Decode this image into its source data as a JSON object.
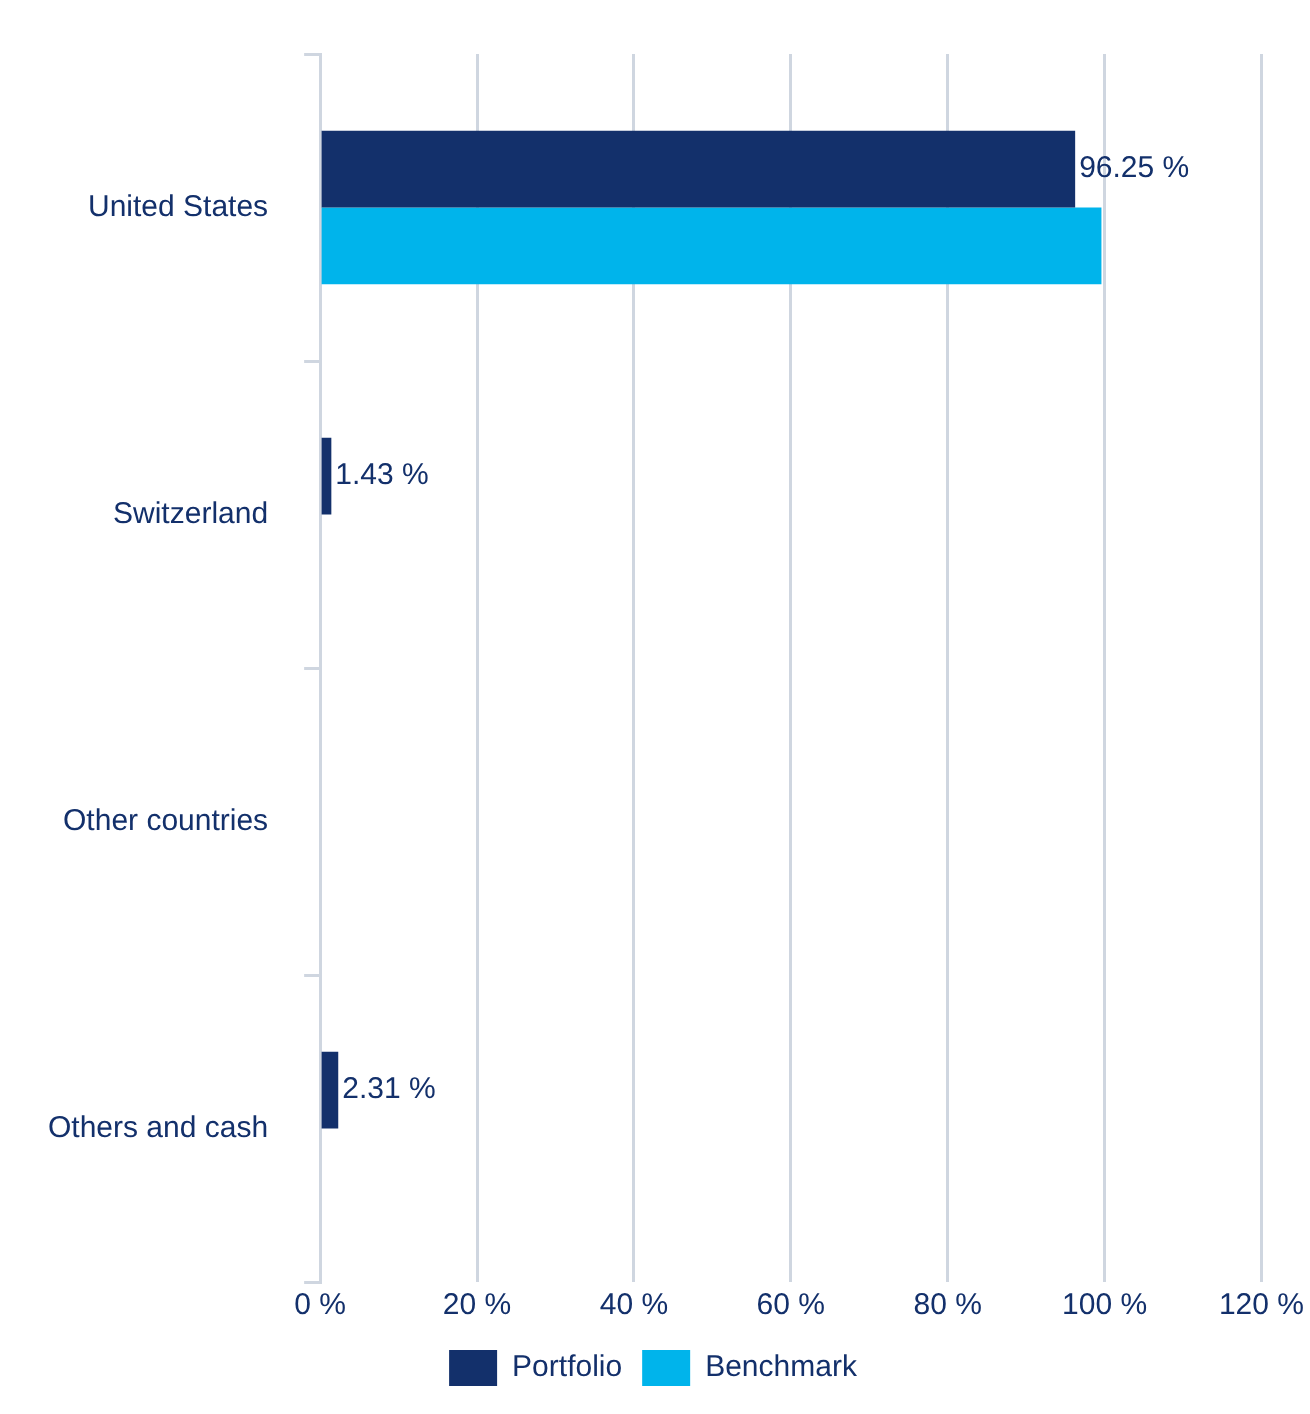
{
  "chart_data": {
    "type": "bar",
    "orientation": "horizontal",
    "categories": [
      "United States",
      "Switzerland",
      "Other countries",
      "Others and cash"
    ],
    "series": [
      {
        "name": "Portfolio",
        "color": "#13306b",
        "values": [
          96.25,
          1.43,
          0,
          2.31
        ],
        "value_labels": [
          "96.25 %",
          "1.43 %",
          null,
          "2.31 %"
        ]
      },
      {
        "name": "Benchmark",
        "color": "#00b4eb",
        "values": [
          99.6,
          null,
          null,
          null
        ]
      }
    ],
    "xlim": [
      0,
      120
    ],
    "xticks": [
      {
        "value": 0,
        "label": "0 %"
      },
      {
        "value": 20,
        "label": "20 %"
      },
      {
        "value": 40,
        "label": "40 %"
      },
      {
        "value": 60,
        "label": "60 %"
      },
      {
        "value": 80,
        "label": "80 %"
      },
      {
        "value": 100,
        "label": "100 %"
      },
      {
        "value": 120,
        "label": "120 %"
      }
    ],
    "grid": "x",
    "legend": "bottom"
  }
}
